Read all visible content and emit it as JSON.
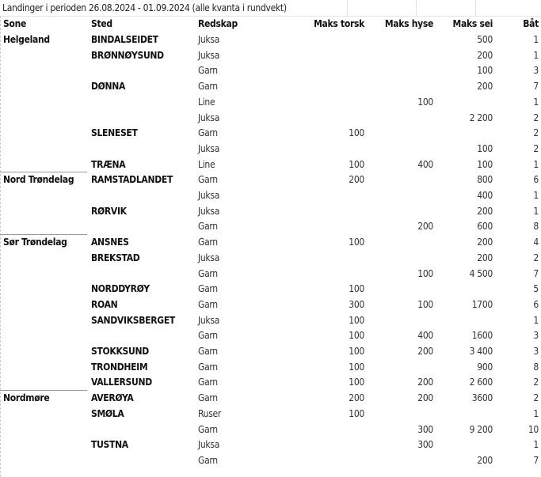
{
  "title": "Landinger i perioden 26.08.2024 - 01.09.2024 (alle kvanta i rundvekt)",
  "columns": {
    "sone": "Sone",
    "sted": "Sted",
    "redskap": "Redskap",
    "torsk": "Maks torsk",
    "hyse": "Maks hyse",
    "sei": "Maks sei",
    "bat": "Båt"
  },
  "rows": [
    {
      "zone": "Helgeland",
      "sted": "BINDALSEIDET",
      "redskap": "Juksa",
      "torsk": "",
      "hyse": "",
      "sei": "500",
      "bat": "1"
    },
    {
      "zone": "",
      "sted": "BRØNNØYSUND",
      "redskap": "Juksa",
      "torsk": "",
      "hyse": "",
      "sei": "200",
      "bat": "1"
    },
    {
      "zone": "",
      "sted": "",
      "redskap": "Garn",
      "torsk": "",
      "hyse": "",
      "sei": "100",
      "bat": "3"
    },
    {
      "zone": "",
      "sted": "DØNNA",
      "redskap": "Garn",
      "torsk": "",
      "hyse": "",
      "sei": "200",
      "bat": "7"
    },
    {
      "zone": "",
      "sted": "",
      "redskap": "Line",
      "torsk": "",
      "hyse": "100",
      "sei": "",
      "bat": "1"
    },
    {
      "zone": "",
      "sted": "",
      "redskap": "Juksa",
      "torsk": "",
      "hyse": "",
      "sei": "2 200",
      "bat": "2"
    },
    {
      "zone": "",
      "sted": "SLENESET",
      "redskap": "Garn",
      "torsk": "100",
      "hyse": "",
      "sei": "",
      "bat": "2"
    },
    {
      "zone": "",
      "sted": "",
      "redskap": "Juksa",
      "torsk": "",
      "hyse": "",
      "sei": "100",
      "bat": "2"
    },
    {
      "zone": "",
      "sted": "TRÆNA",
      "redskap": "Line",
      "torsk": "100",
      "hyse": "400",
      "sei": "100",
      "bat": "1"
    },
    {
      "zone": "Nord Trøndelag",
      "sted": "RAMSTADLANDET",
      "redskap": "Garn",
      "torsk": "200",
      "hyse": "",
      "sei": "800",
      "bat": "6"
    },
    {
      "zone": "",
      "sted": "",
      "redskap": "Juksa",
      "torsk": "",
      "hyse": "",
      "sei": "400",
      "bat": "1"
    },
    {
      "zone": "",
      "sted": "RØRVIK",
      "redskap": "Juksa",
      "torsk": "",
      "hyse": "",
      "sei": "200",
      "bat": "1"
    },
    {
      "zone": "",
      "sted": "",
      "redskap": "Garn",
      "torsk": "",
      "hyse": "200",
      "sei": "600",
      "bat": "8"
    },
    {
      "zone": "Sør Trøndelag",
      "sted": "ANSNES",
      "redskap": "Garn",
      "torsk": "100",
      "hyse": "",
      "sei": "200",
      "bat": "4"
    },
    {
      "zone": "",
      "sted": "BREKSTAD",
      "redskap": "Juksa",
      "torsk": "",
      "hyse": "",
      "sei": "200",
      "bat": "2"
    },
    {
      "zone": "",
      "sted": "",
      "redskap": "Garn",
      "torsk": "",
      "hyse": "100",
      "sei": "4 500",
      "bat": "7"
    },
    {
      "zone": "",
      "sted": "NORDDYRØY",
      "redskap": "Garn",
      "torsk": "100",
      "hyse": "",
      "sei": "",
      "bat": "5"
    },
    {
      "zone": "",
      "sted": "ROAN",
      "redskap": "Garn",
      "torsk": "300",
      "hyse": "100",
      "sei": "1700",
      "bat": "6"
    },
    {
      "zone": "",
      "sted": "SANDVIKSBERGET",
      "redskap": "Juksa",
      "torsk": "100",
      "hyse": "",
      "sei": "",
      "bat": "1"
    },
    {
      "zone": "",
      "sted": "",
      "redskap": "Garn",
      "torsk": "100",
      "hyse": "400",
      "sei": "1600",
      "bat": "3"
    },
    {
      "zone": "",
      "sted": "STOKKSUND",
      "redskap": "Garn",
      "torsk": "100",
      "hyse": "200",
      "sei": "3 400",
      "bat": "3"
    },
    {
      "zone": "",
      "sted": "TRONDHEIM",
      "redskap": "Garn",
      "torsk": "100",
      "hyse": "",
      "sei": "900",
      "bat": "8"
    },
    {
      "zone": "",
      "sted": "VALLERSUND",
      "redskap": "Garn",
      "torsk": "100",
      "hyse": "200",
      "sei": "2 600",
      "bat": "2"
    },
    {
      "zone": "Nordmøre",
      "sted": "AVERØYA",
      "redskap": "Garn",
      "torsk": "200",
      "hyse": "200",
      "sei": "3600",
      "bat": "2"
    },
    {
      "zone": "",
      "sted": "SMØLA",
      "redskap": "Ruser",
      "torsk": "100",
      "hyse": "",
      "sei": "",
      "bat": "1"
    },
    {
      "zone": "",
      "sted": "",
      "redskap": "Garn",
      "torsk": "",
      "hyse": "300",
      "sei": "9 200",
      "bat": "10"
    },
    {
      "zone": "",
      "sted": "TUSTNA",
      "redskap": "Juksa",
      "torsk": "",
      "hyse": "300",
      "sei": "",
      "bat": "1"
    },
    {
      "zone": "",
      "sted": "",
      "redskap": "Garn",
      "torsk": "",
      "hyse": "",
      "sei": "200",
      "bat": "7"
    }
  ]
}
